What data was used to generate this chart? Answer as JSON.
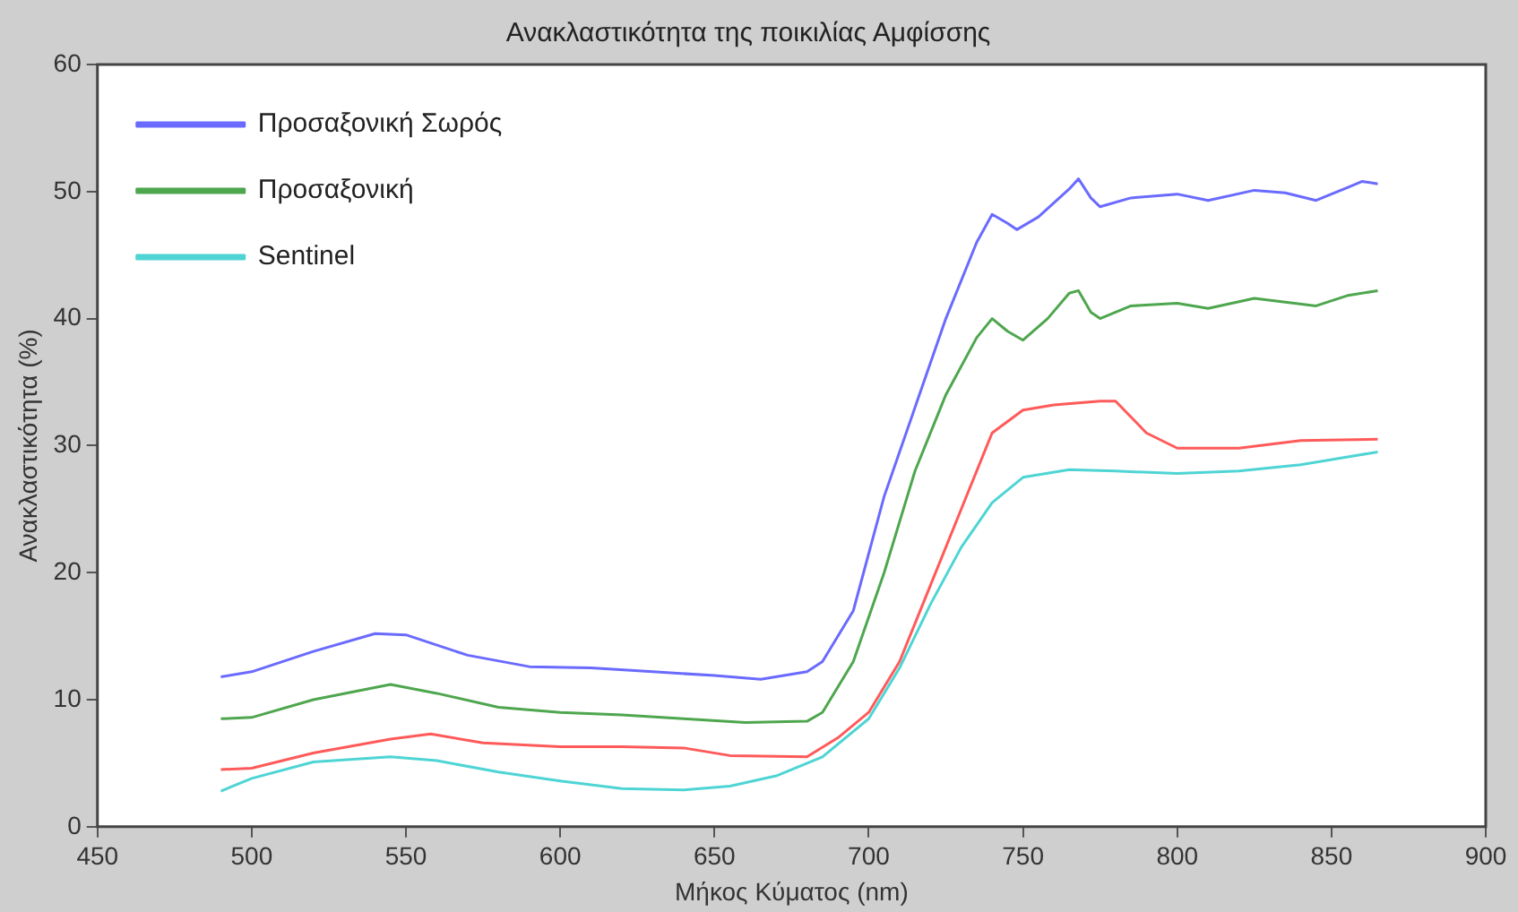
{
  "chart_data": {
    "type": "line",
    "title": "Ανακλαστικότητα της ποικιλίας Αμφίσσης",
    "xlabel": "Μήκος Κύματος (nm)",
    "ylabel": "Ανακλαστικότητα (%)",
    "xlim": [
      450,
      900
    ],
    "xticks": [
      450,
      500,
      550,
      600,
      650,
      700,
      750,
      800,
      850,
      900
    ],
    "ylim": [
      0,
      60
    ],
    "yticks": [
      0,
      10,
      20,
      30,
      40,
      50,
      60
    ],
    "grid": false,
    "legend": "top left",
    "marker": "none",
    "line_style": "solid",
    "series": [
      {
        "name": "Προσαξονική Σωρός",
        "color": "#6a6aff",
        "x": [
          490,
          500,
          520,
          540,
          550,
          570,
          590,
          610,
          630,
          650,
          665,
          680,
          685,
          695,
          705,
          715,
          725,
          735,
          740,
          745,
          748,
          755,
          765,
          768,
          772,
          775,
          785,
          800,
          810,
          825,
          835,
          845,
          855,
          860,
          865
        ],
        "values": [
          11.8,
          12.2,
          13.8,
          15.2,
          15.1,
          13.5,
          12.6,
          12.5,
          12.2,
          11.9,
          11.6,
          12.2,
          13,
          17,
          26,
          33,
          40,
          46,
          48.2,
          47.5,
          47,
          48,
          50.2,
          51,
          49.5,
          48.8,
          49.5,
          49.8,
          49.3,
          50.1,
          49.9,
          49.3,
          50.3,
          50.8,
          50.6
        ]
      },
      {
        "name": "Προσαξονική",
        "color": "#4ea64e",
        "x": [
          490,
          500,
          520,
          545,
          560,
          580,
          600,
          620,
          640,
          660,
          680,
          685,
          695,
          705,
          715,
          725,
          735,
          740,
          745,
          750,
          758,
          765,
          768,
          772,
          775,
          785,
          800,
          810,
          825,
          845,
          855,
          865
        ],
        "values": [
          8.5,
          8.6,
          10,
          11.2,
          10.5,
          9.4,
          9,
          8.8,
          8.5,
          8.2,
          8.3,
          9,
          13,
          20,
          28,
          34,
          38.5,
          40,
          39,
          38.3,
          40,
          42,
          42.2,
          40.5,
          40,
          41,
          41.2,
          40.8,
          41.6,
          41,
          41.8,
          42.2
        ]
      },
      {
        "color": "#ff5a5a",
        "x": [
          490,
          500,
          520,
          545,
          558,
          575,
          600,
          620,
          640,
          655,
          680,
          690,
          700,
          710,
          720,
          730,
          740,
          750,
          760,
          775,
          780,
          790,
          800,
          820,
          840,
          865
        ],
        "values": [
          4.5,
          4.6,
          5.8,
          6.9,
          7.3,
          6.6,
          6.3,
          6.3,
          6.2,
          5.6,
          5.5,
          7,
          9,
          13,
          19,
          25,
          31,
          32.8,
          33.2,
          33.5,
          33.5,
          31,
          29.8,
          29.8,
          30.4,
          30.5
        ]
      },
      {
        "name": "Sentinel",
        "color": "#4fd4d4",
        "x": [
          490,
          500,
          520,
          545,
          560,
          580,
          600,
          620,
          640,
          655,
          670,
          685,
          700,
          710,
          720,
          730,
          740,
          750,
          765,
          780,
          800,
          820,
          840,
          865
        ],
        "values": [
          2.8,
          3.8,
          5.1,
          5.5,
          5.2,
          4.3,
          3.6,
          3,
          2.9,
          3.2,
          4,
          5.5,
          8.5,
          12.5,
          17.5,
          22,
          25.5,
          27.5,
          28.1,
          28,
          27.8,
          28,
          28.5,
          29.5
        ]
      }
    ]
  }
}
